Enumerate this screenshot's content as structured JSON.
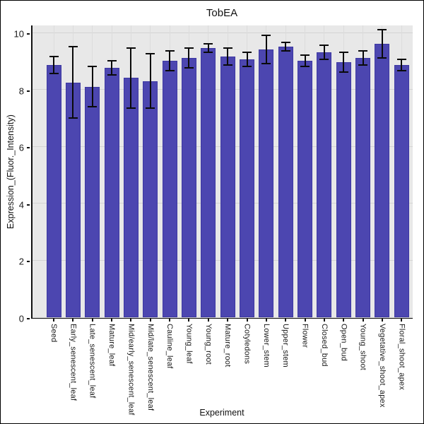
{
  "figure": {
    "background": "#ffffff",
    "frame_border_color": "#000000"
  },
  "chart_data": {
    "type": "bar",
    "title": "TobEA",
    "xlabel": "Experiment",
    "ylabel": "Expression_(Fluor._Intensity)",
    "ylim": [
      0,
      10.25
    ],
    "yticks": [
      0,
      2,
      4,
      6,
      8,
      10
    ],
    "grid": "major horizontal gridlines at yticks and vertical gridlines at each category center, on gray panel",
    "legend_position": "none",
    "bar_color": "#4c46b0",
    "bar_edge_color": "#3d38a2",
    "error_bar_color": "#0a0a0a",
    "panel_background": "#e8e8e8",
    "categories": [
      "Seed",
      "Early_senescent_leaf",
      "Late_senescent_leaf",
      "Mature_leaf",
      "Mid/early_senescent_leaf",
      "Mid/late_senescent_leaf",
      "Cauline_leaf",
      "Young_leaf",
      "Young_root",
      "Mature_root",
      "Cotyledons",
      "Lower_stem",
      "Upper_stem",
      "Flower",
      "Closed_bud",
      "Open_bud",
      "Young_shoot",
      "Vegetative_shoot_apex",
      "Floral_shoot_apex"
    ],
    "values": [
      8.85,
      8.25,
      8.1,
      8.75,
      8.4,
      8.3,
      9.0,
      9.1,
      9.45,
      9.15,
      9.05,
      9.4,
      9.5,
      9.0,
      9.3,
      8.95,
      9.1,
      9.6,
      8.85
    ],
    "errors": [
      0.3,
      1.25,
      0.7,
      0.25,
      1.05,
      0.95,
      0.35,
      0.35,
      0.15,
      0.3,
      0.25,
      0.5,
      0.15,
      0.2,
      0.25,
      0.35,
      0.25,
      0.5,
      0.2
    ]
  }
}
